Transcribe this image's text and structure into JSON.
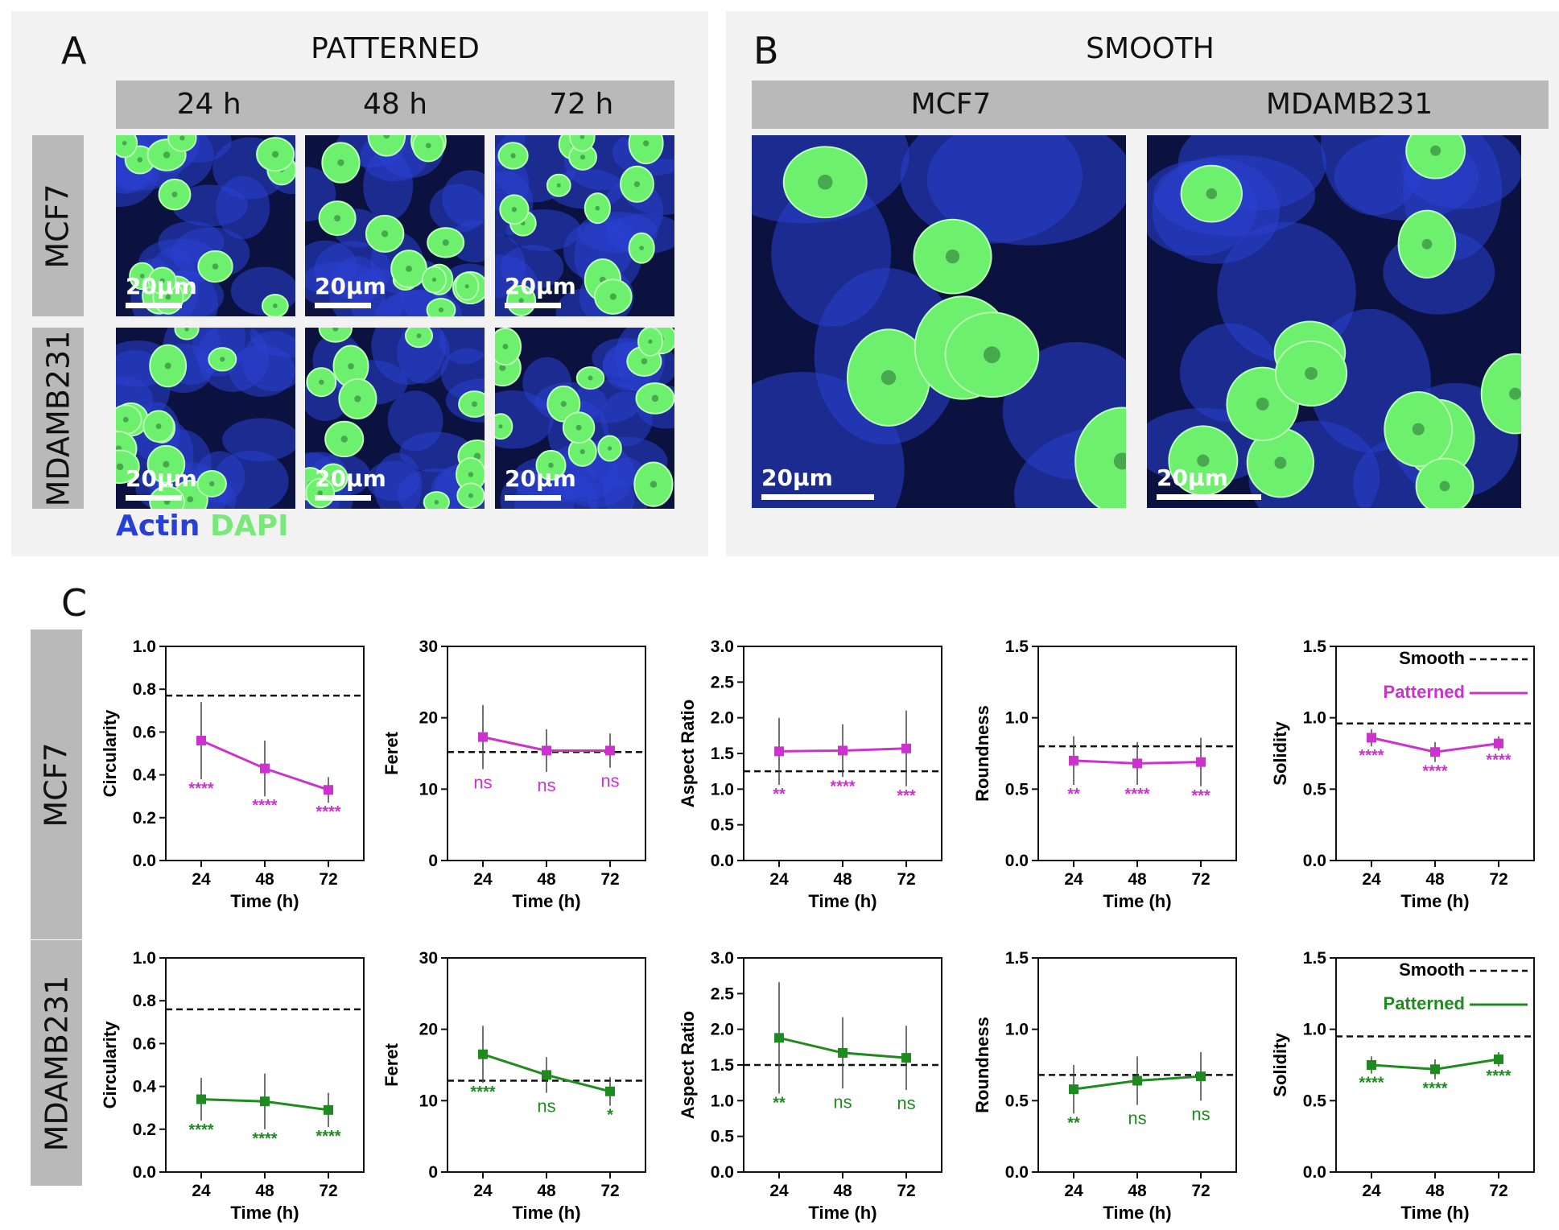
{
  "panel_a": {
    "label": "A",
    "title": "PATTERNED",
    "columns": [
      "24 h",
      "48 h",
      "72 h"
    ],
    "rows": [
      "MCF7",
      "MDAMB231"
    ],
    "scale_bar": "20μm",
    "stain_actin": "Actin",
    "stain_dapi": "DAPI"
  },
  "panel_b": {
    "label": "B",
    "title": "SMOOTH",
    "columns": [
      "MCF7",
      "MDAMB231"
    ],
    "scale_bar": "20μm"
  },
  "panel_c": {
    "label": "C",
    "rows": [
      "MCF7",
      "MDAMB231"
    ],
    "legend_smooth": "Smooth",
    "legend_patterned": "Patterned",
    "colors": {
      "mcf7": "#cc33cc",
      "mdamb231": "#1f8a1f",
      "smooth": "#111111"
    }
  },
  "chart_data": [
    {
      "type": "line",
      "row": "MCF7",
      "ylabel": "Circularity",
      "xlabel": "Time (h)",
      "x": [
        24,
        48,
        72
      ],
      "ylim": [
        0,
        1.0
      ],
      "yticks": [
        "0.0",
        "0.2",
        "0.4",
        "0.6",
        "0.8",
        "1.0"
      ],
      "series": [
        {
          "name": "Patterned",
          "values": [
            0.56,
            0.43,
            0.33
          ],
          "err": [
            0.18,
            0.13,
            0.06
          ]
        }
      ],
      "smooth": 0.77,
      "stars": [
        "****",
        "****",
        "****"
      ]
    },
    {
      "type": "line",
      "row": "MCF7",
      "ylabel": "Feret",
      "xlabel": "Time (h)",
      "x": [
        24,
        48,
        72
      ],
      "ylim": [
        0,
        30
      ],
      "yticks": [
        "0",
        "10",
        "20",
        "30"
      ],
      "series": [
        {
          "name": "Patterned",
          "values": [
            17.3,
            15.4,
            15.4
          ],
          "err": [
            4.5,
            3.0,
            2.4
          ]
        }
      ],
      "smooth": 15.2,
      "stars": [
        "ns",
        "ns",
        "ns"
      ]
    },
    {
      "type": "line",
      "row": "MCF7",
      "ylabel": "Aspect Ratio",
      "xlabel": "Time (h)",
      "x": [
        24,
        48,
        72
      ],
      "ylim": [
        0,
        3.0
      ],
      "yticks": [
        "0.0",
        "0.5",
        "1.0",
        "1.5",
        "2.0",
        "2.5",
        "3.0"
      ],
      "series": [
        {
          "name": "Patterned",
          "values": [
            1.53,
            1.54,
            1.57
          ],
          "err": [
            0.47,
            0.37,
            0.53
          ]
        }
      ],
      "smooth": 1.25,
      "stars": [
        "**",
        "****",
        "***"
      ]
    },
    {
      "type": "line",
      "row": "MCF7",
      "ylabel": "Roundness",
      "xlabel": "Time (h)",
      "x": [
        24,
        48,
        72
      ],
      "ylim": [
        0,
        1.5
      ],
      "yticks": [
        "0.0",
        "0.5",
        "1.0",
        "1.5"
      ],
      "series": [
        {
          "name": "Patterned",
          "values": [
            0.7,
            0.68,
            0.69
          ],
          "err": [
            0.17,
            0.15,
            0.17
          ]
        }
      ],
      "smooth": 0.8,
      "stars": [
        "**",
        "****",
        "***"
      ]
    },
    {
      "type": "line",
      "row": "MCF7",
      "ylabel": "Solidity",
      "xlabel": "Time (h)",
      "x": [
        24,
        48,
        72
      ],
      "ylim": [
        0,
        1.5
      ],
      "yticks": [
        "0.0",
        "0.5",
        "1.0",
        "1.5"
      ],
      "series": [
        {
          "name": "Patterned",
          "values": [
            0.86,
            0.76,
            0.82
          ],
          "err": [
            0.06,
            0.07,
            0.05
          ]
        }
      ],
      "smooth": 0.96,
      "stars": [
        "****",
        "****",
        "****"
      ],
      "legend": true
    },
    {
      "type": "line",
      "row": "MDAMB231",
      "ylabel": "Circularity",
      "xlabel": "Time (h)",
      "x": [
        24,
        48,
        72
      ],
      "ylim": [
        0,
        1.0
      ],
      "yticks": [
        "0.0",
        "0.2",
        "0.4",
        "0.6",
        "0.8",
        "1.0"
      ],
      "series": [
        {
          "name": "Patterned",
          "values": [
            0.34,
            0.33,
            0.29
          ],
          "err": [
            0.1,
            0.13,
            0.08
          ]
        }
      ],
      "smooth": 0.76,
      "stars": [
        "****",
        "****",
        "****"
      ]
    },
    {
      "type": "line",
      "row": "MDAMB231",
      "ylabel": "Feret",
      "xlabel": "Time (h)",
      "x": [
        24,
        48,
        72
      ],
      "ylim": [
        0,
        30
      ],
      "yticks": [
        "0",
        "10",
        "20",
        "30"
      ],
      "series": [
        {
          "name": "Patterned",
          "values": [
            16.5,
            13.6,
            11.3
          ],
          "err": [
            4.0,
            2.5,
            2.0
          ]
        }
      ],
      "smooth": 12.8,
      "stars": [
        "****",
        "ns",
        "*"
      ]
    },
    {
      "type": "line",
      "row": "MDAMB231",
      "ylabel": "Aspect Ratio",
      "xlabel": "Time (h)",
      "x": [
        24,
        48,
        72
      ],
      "ylim": [
        0,
        3.0
      ],
      "yticks": [
        "0.0",
        "0.5",
        "1.0",
        "1.5",
        "2.0",
        "2.5",
        "3.0"
      ],
      "series": [
        {
          "name": "Patterned",
          "values": [
            1.88,
            1.67,
            1.6
          ],
          "err": [
            0.78,
            0.5,
            0.45
          ]
        }
      ],
      "smooth": 1.5,
      "stars": [
        "**",
        "ns",
        "ns"
      ]
    },
    {
      "type": "line",
      "row": "MDAMB231",
      "ylabel": "Roundness",
      "xlabel": "Time (h)",
      "x": [
        24,
        48,
        72
      ],
      "ylim": [
        0,
        1.5
      ],
      "yticks": [
        "0.0",
        "0.5",
        "1.0",
        "1.5"
      ],
      "series": [
        {
          "name": "Patterned",
          "values": [
            0.58,
            0.64,
            0.67
          ],
          "err": [
            0.17,
            0.17,
            0.17
          ]
        }
      ],
      "smooth": 0.68,
      "stars": [
        "**",
        "ns",
        "ns"
      ]
    },
    {
      "type": "line",
      "row": "MDAMB231",
      "ylabel": "Solidity",
      "xlabel": "Time (h)",
      "x": [
        24,
        48,
        72
      ],
      "ylim": [
        0,
        1.5
      ],
      "yticks": [
        "0.0",
        "0.5",
        "1.0",
        "1.5"
      ],
      "series": [
        {
          "name": "Patterned",
          "values": [
            0.75,
            0.72,
            0.79
          ],
          "err": [
            0.06,
            0.07,
            0.05
          ]
        }
      ],
      "smooth": 0.95,
      "stars": [
        "****",
        "****",
        "****"
      ],
      "legend": true
    }
  ]
}
